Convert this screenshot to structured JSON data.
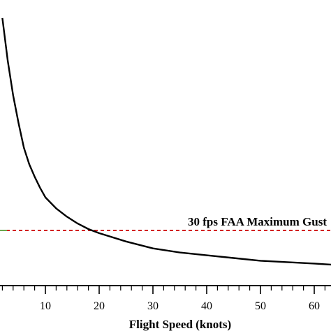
{
  "chart_data": {
    "type": "line",
    "xlabel": "Flight Speed (knots)",
    "ylabel": "",
    "title": "",
    "xlim": [
      0,
      64
    ],
    "ylim": [
      0,
      200
    ],
    "x_ticks": [
      10,
      20,
      30,
      40,
      50,
      60
    ],
    "x_tick_labels": [
      "10",
      "20",
      "30",
      "40",
      "50",
      "60"
    ],
    "grid": false,
    "series": [
      {
        "x": [
          2,
          3,
          4,
          5,
          6,
          7,
          8,
          9,
          10,
          12,
          14,
          16,
          18,
          20,
          25,
          30,
          35,
          40,
          45,
          50,
          55,
          60,
          64
        ],
        "y": [
          194,
          163,
          138,
          118,
          100,
          88,
          79,
          71,
          64,
          56,
          50,
          45,
          41,
          38,
          32,
          27,
          24,
          22,
          20,
          18,
          17,
          16,
          15
        ],
        "color": "#000000"
      }
    ],
    "reference_line": {
      "y": 40,
      "label": "30 fps FAA Maximum Gust",
      "color": "#cc0000",
      "style": "dashed"
    },
    "marker_color": "#6aa84f"
  }
}
